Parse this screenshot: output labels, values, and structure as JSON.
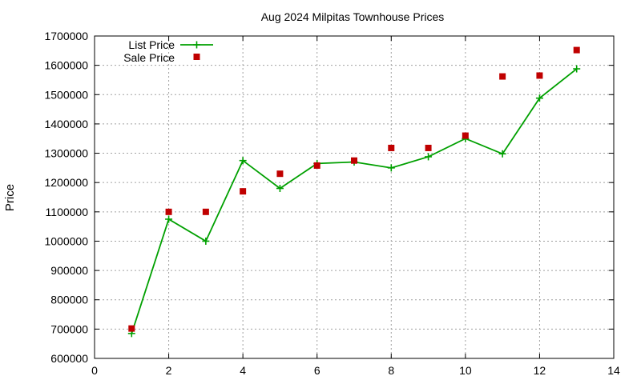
{
  "chart_data": {
    "type": "line",
    "title": "Aug 2024 Milpitas Townhouse Prices",
    "xlabel": "",
    "ylabel": "Price",
    "xlim": [
      0,
      14
    ],
    "ylim": [
      600000,
      1700000
    ],
    "xticks": [
      0,
      2,
      4,
      6,
      8,
      10,
      12,
      14
    ],
    "yticks": [
      600000,
      700000,
      800000,
      900000,
      1000000,
      1100000,
      1200000,
      1300000,
      1400000,
      1500000,
      1600000,
      1700000
    ],
    "grid": true,
    "legend_position": "top-left",
    "series": [
      {
        "name": "List Price",
        "style": "lines+points",
        "marker": "plus",
        "color": "#00a000",
        "x": [
          1,
          2,
          3,
          4,
          5,
          6,
          7,
          8,
          9,
          10,
          11,
          12,
          13
        ],
        "y": [
          685000,
          1075000,
          1000000,
          1275000,
          1180000,
          1265000,
          1270000,
          1250000,
          1288000,
          1350000,
          1298000,
          1488000,
          1588000
        ]
      },
      {
        "name": "Sale Price",
        "style": "points",
        "marker": "square",
        "color": "#c00000",
        "x": [
          1,
          2,
          3,
          4,
          5,
          6,
          7,
          8,
          9,
          10,
          11,
          12,
          13
        ],
        "y": [
          702000,
          1100000,
          1100000,
          1170000,
          1230000,
          1258000,
          1275000,
          1318000,
          1318000,
          1360000,
          1562000,
          1565000,
          1652000
        ]
      }
    ]
  }
}
